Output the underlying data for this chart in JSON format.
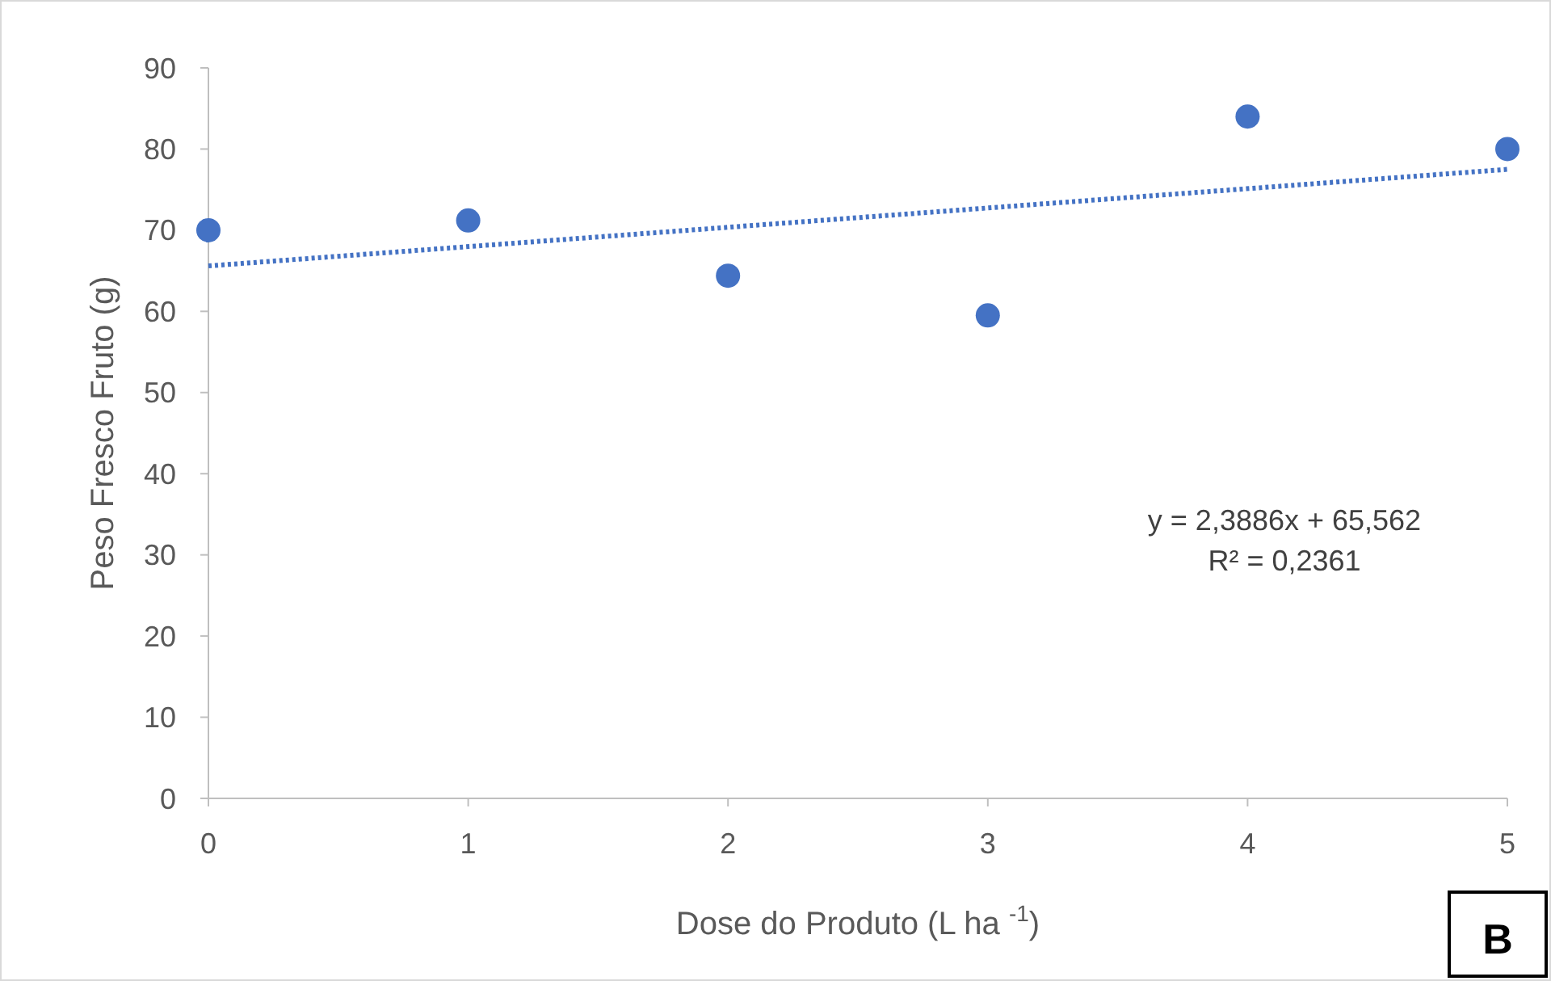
{
  "chart_data": {
    "type": "scatter",
    "xlabel": "Dose do Produto (L ha $^{-1}$)",
    "ylabel": "Peso Fresco Fruto (g)",
    "x": [
      0,
      1,
      2,
      3,
      4,
      5
    ],
    "series": [
      {
        "color": "#4472c4",
        "values": [
          70,
          71.2,
          64.4,
          59.5,
          84,
          80
        ],
        "marker": "circle"
      },
      {
        "type": "line",
        "color": "#4472c4",
        "x": [
          0,
          5
        ],
        "values": [
          65.6,
          77.5
        ],
        "line_style": "dotted",
        "marker": "none"
      }
    ],
    "xlim": [
      0,
      5
    ],
    "xticks": [
      0,
      1,
      2,
      3,
      4,
      5
    ],
    "ylim": [
      0,
      90
    ],
    "yticks": [
      0,
      10,
      20,
      30,
      40,
      50,
      60,
      70,
      80,
      90
    ],
    "grid": false,
    "annotations": [
      "y = 2,3886x + 65,562",
      "R² = 0,2361",
      "B"
    ]
  }
}
